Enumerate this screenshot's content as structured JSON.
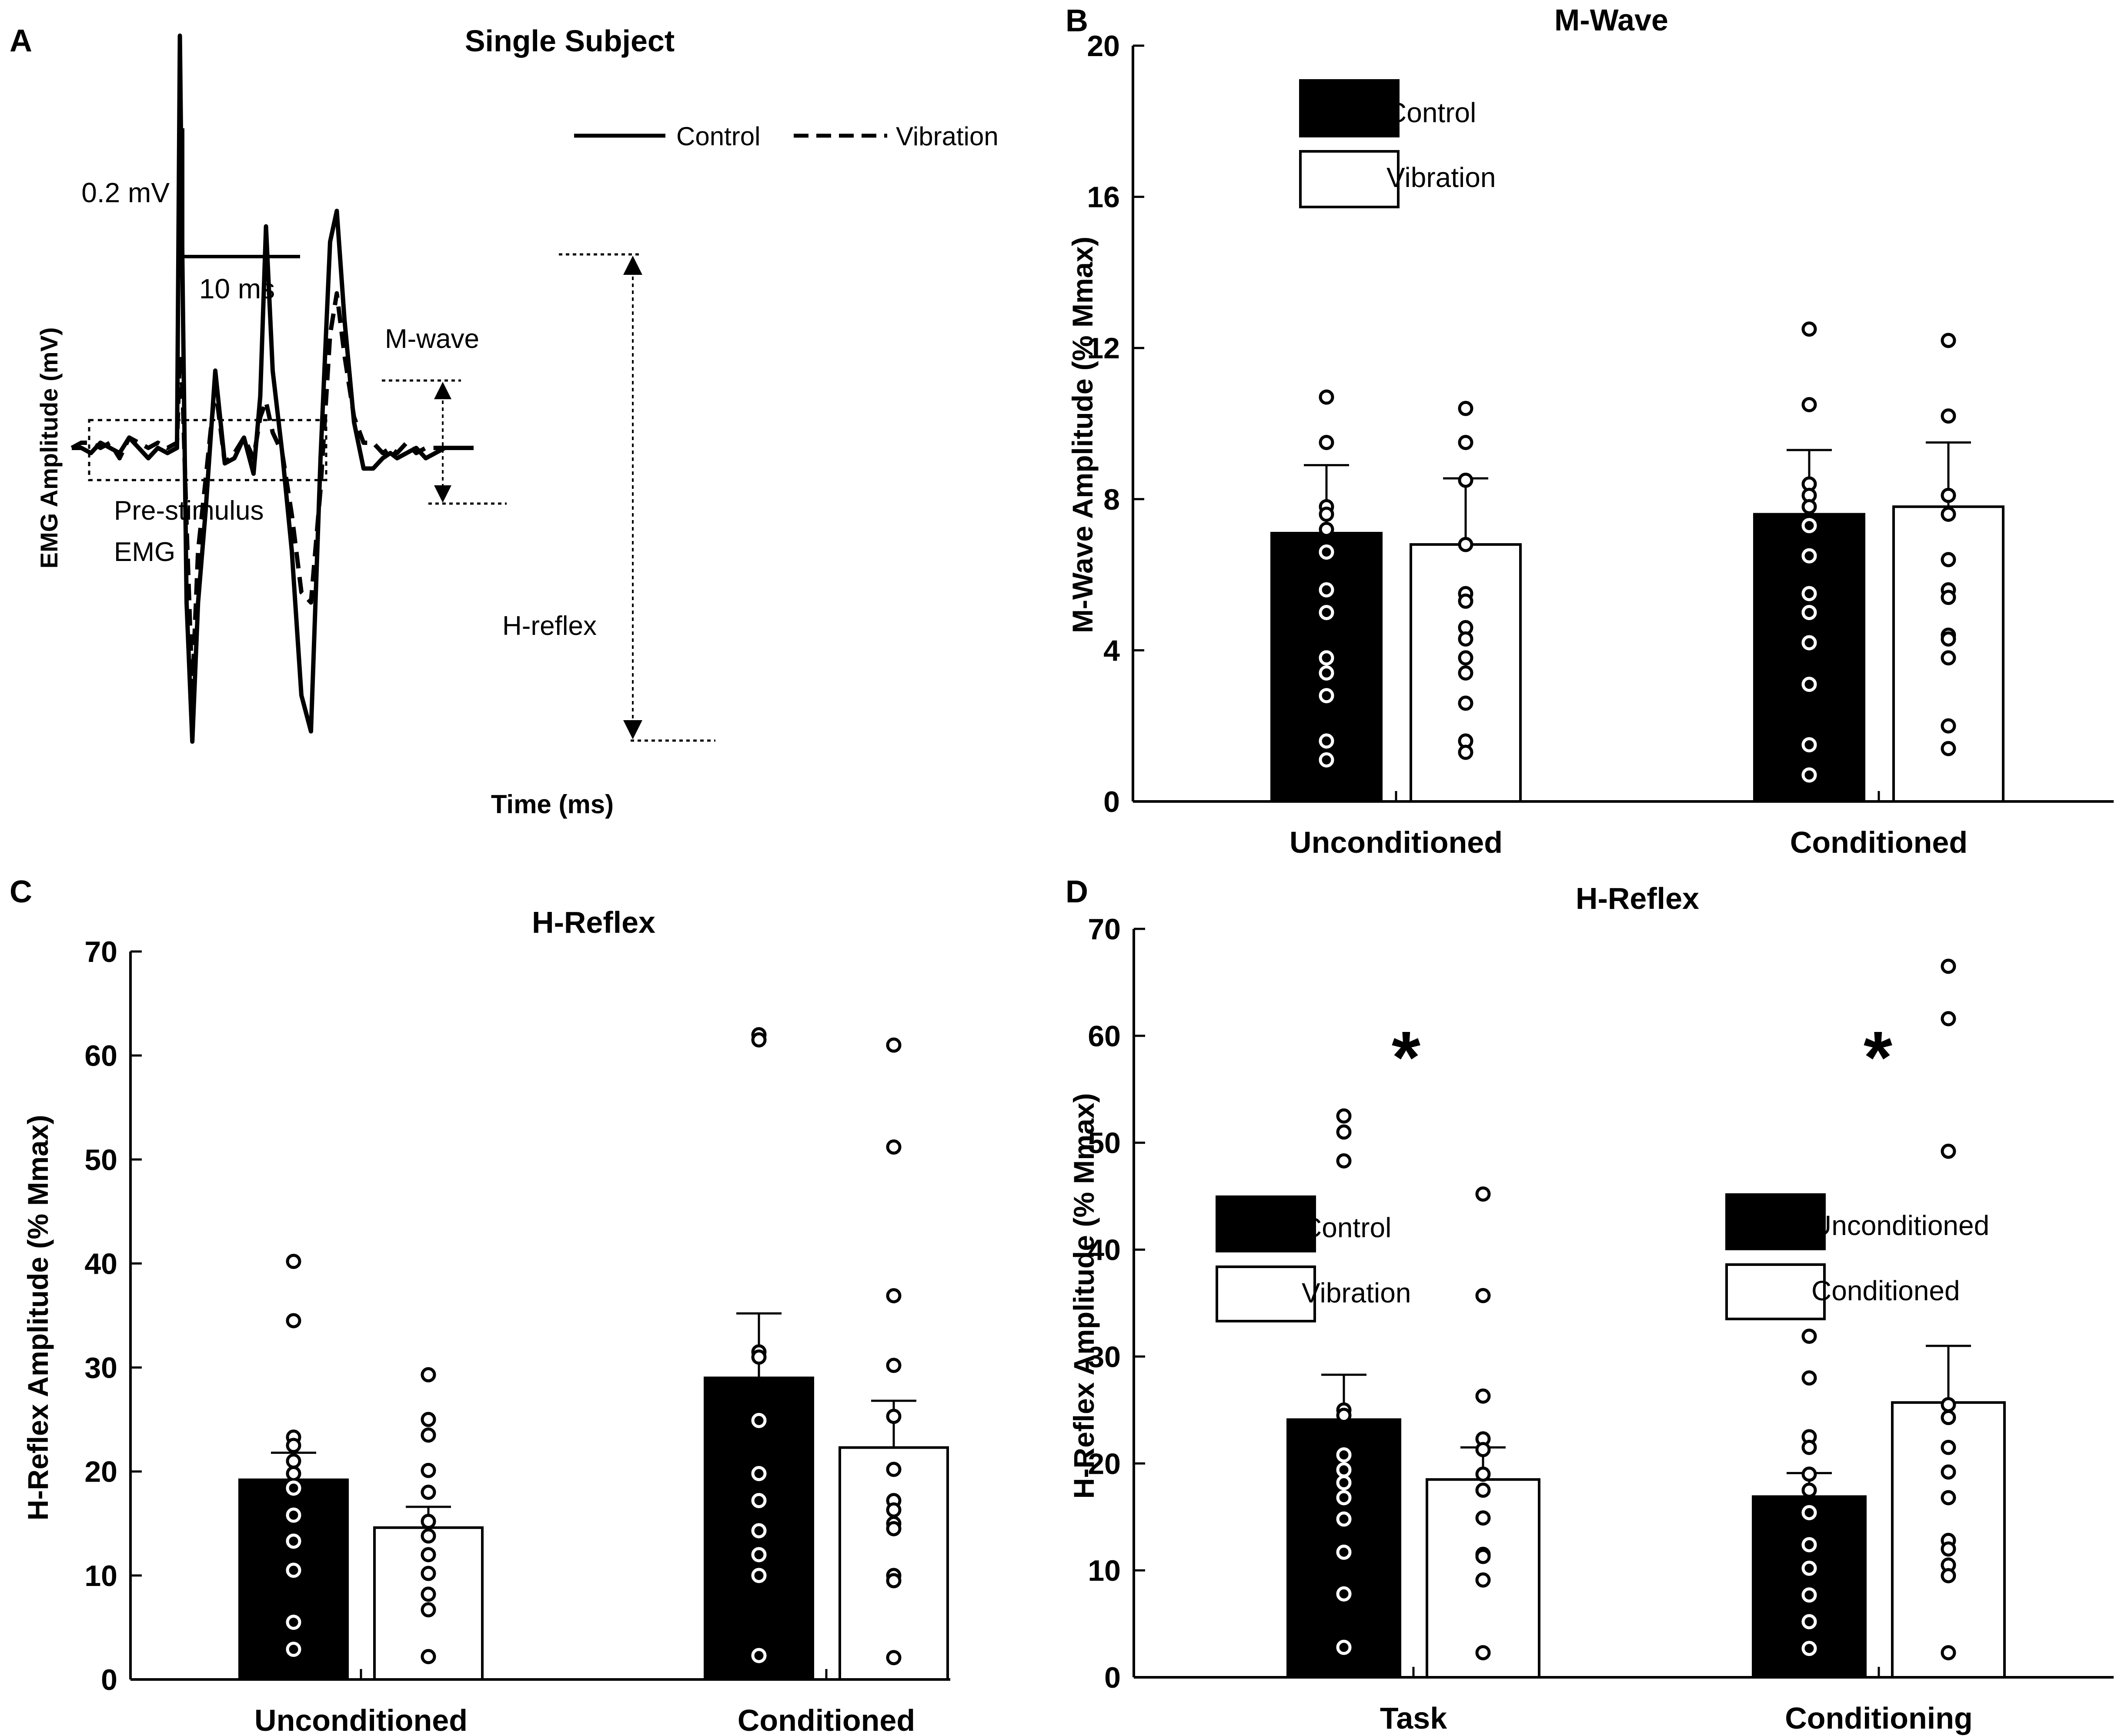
{
  "colors": {
    "control": "#000000",
    "vibration": "#ffffff",
    "ink": "#000000"
  },
  "chart_data": [
    {
      "panel": "A",
      "type": "line",
      "title": "Single Subject",
      "xlabel": "Time (ms)",
      "ylabel": "EMG Amplitude (mV)",
      "legend": [
        {
          "name": "Control",
          "style": "solid"
        },
        {
          "name": "Vibration",
          "style": "dashed"
        }
      ],
      "scale_bar": {
        "amplitude": "0.2 mV",
        "time": "10 ms"
      },
      "annotations": [
        "M-wave",
        "H-reflex",
        "Pre-stimulus",
        "EMG"
      ],
      "series": [
        {
          "name": "Control",
          "x": [
            0,
            1,
            2,
            3,
            4,
            5,
            6,
            7,
            8,
            9,
            10,
            11,
            11.3,
            11.6,
            12,
            12.6,
            13.2,
            14,
            15,
            16,
            17,
            18,
            19,
            19.7,
            20.3,
            21,
            22,
            23,
            24,
            25,
            26,
            27,
            27.7,
            28.5,
            29.5,
            30.5,
            31.5,
            32.5,
            33.3,
            34,
            35,
            36,
            37,
            38,
            39,
            40,
            41,
            42
          ],
          "y": [
            0,
            0,
            -0.01,
            0.01,
            0,
            -0.01,
            0.02,
            0,
            -0.02,
            0,
            -0.01,
            0,
            0.8,
            0.3,
            -0.3,
            -0.57,
            -0.3,
            -0.12,
            0.15,
            -0.03,
            -0.02,
            0.02,
            -0.05,
            0.1,
            0.43,
            0.15,
            -0.01,
            -0.2,
            -0.48,
            -0.55,
            -0.02,
            0.4,
            0.46,
            0.25,
            0.05,
            -0.04,
            -0.04,
            -0.02,
            -0.01,
            -0.02,
            -0.01,
            0,
            -0.02,
            -0.01,
            0,
            0,
            0,
            0
          ]
        },
        {
          "name": "Vibration",
          "x": [
            0,
            1,
            2,
            3,
            4,
            5,
            6,
            7,
            8,
            9,
            10,
            11,
            11.3,
            11.6,
            12,
            12.6,
            13.2,
            14,
            15,
            16,
            17,
            18,
            19,
            19.7,
            20.3,
            21,
            22,
            23,
            24,
            25,
            26,
            27,
            27.7,
            28.5,
            29.5,
            30.5,
            31.5,
            32.5,
            33.3,
            34,
            35,
            36,
            37,
            38,
            39,
            40,
            41,
            42
          ],
          "y": [
            0,
            0.01,
            0.01,
            0,
            0.01,
            -0.02,
            0.02,
            0.01,
            0,
            0.01,
            0,
            0.01,
            0.18,
            0.1,
            -0.15,
            -0.47,
            -0.2,
            -0.06,
            0.12,
            -0.03,
            -0.01,
            0.02,
            -0.02,
            0.06,
            0.09,
            0.03,
            -0.01,
            -0.13,
            -0.28,
            -0.3,
            -0.08,
            0.22,
            0.3,
            0.18,
            0.06,
            0.01,
            0.01,
            -0.01,
            0,
            -0.01,
            0.01,
            -0.01,
            0,
            0,
            0,
            0,
            0,
            0
          ]
        }
      ]
    },
    {
      "panel": "B",
      "type": "bar",
      "title": "M-Wave",
      "ylabel": "M-Wave Amplitude (% Mmax)",
      "categories": [
        "Unconditioned",
        "Conditioned"
      ],
      "ylim": [
        0,
        20
      ],
      "yticks": [
        0,
        4,
        8,
        12,
        16,
        20
      ],
      "legend": [
        "Control",
        "Vibration"
      ],
      "series": [
        {
          "name": "Control",
          "values": [
            7.1,
            7.6
          ],
          "errors": [
            1.8,
            1.7
          ],
          "points": [
            [
              10.7,
              9.5,
              7.8,
              7.6,
              7.2,
              6.6,
              5.6,
              5.0,
              3.8,
              3.4,
              2.8,
              1.6,
              1.1
            ],
            [
              12.5,
              10.5,
              8.4,
              8.1,
              7.8,
              7.3,
              6.5,
              5.5,
              5.0,
              4.2,
              3.1,
              1.5,
              0.7
            ]
          ]
        },
        {
          "name": "Vibration",
          "values": [
            6.8,
            7.8
          ],
          "errors": [
            1.75,
            1.7
          ],
          "points": [
            [
              10.4,
              9.5,
              8.5,
              6.8,
              5.5,
              5.3,
              4.6,
              4.3,
              3.8,
              3.4,
              2.6,
              1.6,
              1.3
            ],
            [
              12.2,
              10.2,
              8.1,
              7.6,
              6.4,
              5.6,
              5.4,
              4.4,
              4.3,
              3.8,
              2.0,
              1.4
            ]
          ]
        }
      ]
    },
    {
      "panel": "C",
      "type": "bar",
      "title": "H-Reflex",
      "ylabel": "H-Reflex Amplitude (% Mmax)",
      "categories": [
        "Unconditioned",
        "Conditioned"
      ],
      "ylim": [
        0,
        70
      ],
      "yticks": [
        0,
        10,
        20,
        30,
        40,
        50,
        60,
        70
      ],
      "series": [
        {
          "name": "Control",
          "values": [
            19.2,
            29.0
          ],
          "errors": [
            2.6,
            6.2
          ],
          "points": [
            [
              40.2,
              34.5,
              23.3,
              22.5,
              21.0,
              19.8,
              18.4,
              15.8,
              13.3,
              10.5,
              5.5,
              2.9
            ],
            [
              62.0,
              61.5,
              31.5,
              31.0,
              24.9,
              19.8,
              17.2,
              14.3,
              12.0,
              10.0,
              2.3
            ]
          ]
        },
        {
          "name": "Vibration",
          "values": [
            14.6,
            22.3
          ],
          "errors": [
            2.0,
            4.5
          ],
          "points": [
            [
              29.3,
              25.0,
              23.5,
              20.1,
              18.0,
              15.2,
              13.8,
              12.0,
              10.2,
              8.2,
              6.7,
              2.2
            ],
            [
              61.0,
              51.2,
              36.9,
              30.2,
              25.3,
              20.2,
              17.2,
              16.3,
              15.0,
              14.5,
              10.0,
              9.5,
              2.1
            ]
          ]
        }
      ]
    },
    {
      "panel": "D",
      "type": "bar",
      "title": "H-Reflex",
      "ylabel": "H-Reflex Amplitude (% Mmax)",
      "categories": [
        "Task",
        "Conditioning"
      ],
      "ylim": [
        0,
        70
      ],
      "yticks": [
        0,
        10,
        20,
        30,
        40,
        50,
        60,
        70
      ],
      "legends": [
        [
          "Control",
          "Vibration"
        ],
        [
          "Unconditioned",
          "Conditioned"
        ]
      ],
      "significance": [
        "*",
        "*"
      ],
      "series": [
        {
          "name": "Control / Unconditioned",
          "values": [
            24.1,
            16.9
          ],
          "errors": [
            4.2,
            2.2
          ],
          "points": [
            [
              52.5,
              51.0,
              48.3,
              25.0,
              24.5,
              20.8,
              19.4,
              18.2,
              16.8,
              14.8,
              11.7,
              7.8,
              2.8
            ],
            [
              31.9,
              28.0,
              22.5,
              21.5,
              19.0,
              17.5,
              15.4,
              12.4,
              10.2,
              7.7,
              5.2,
              2.7
            ]
          ]
        },
        {
          "name": "Vibration / Conditioned",
          "values": [
            18.5,
            25.7
          ],
          "errors": [
            3.0,
            5.3
          ],
          "points": [
            [
              45.2,
              35.7,
              26.3,
              22.3,
              21.3,
              19.0,
              17.5,
              14.9,
              11.5,
              11.3,
              9.1,
              2.3
            ],
            [
              66.5,
              61.6,
              49.2,
              25.5,
              24.3,
              21.5,
              19.2,
              16.8,
              12.8,
              12.0,
              10.5,
              9.5,
              2.3
            ]
          ]
        }
      ]
    }
  ],
  "figure": {
    "panel_labels": [
      "A",
      "B",
      "C",
      "D"
    ],
    "panels": [
      {
        "legend_rows": [
          "Control",
          "Vibration"
        ],
        "ylabel": "M-Wave Amplitude (% Mmax)"
      },
      {
        "ylabel": "H-Reflex Amplitude (% Mmax)"
      },
      {
        "legend_rows": [
          "Control",
          "Vibration",
          "Unconditioned",
          "Conditioned"
        ],
        "ylabel": "H-Reflex Amplitude (% Mmax)"
      }
    ]
  }
}
